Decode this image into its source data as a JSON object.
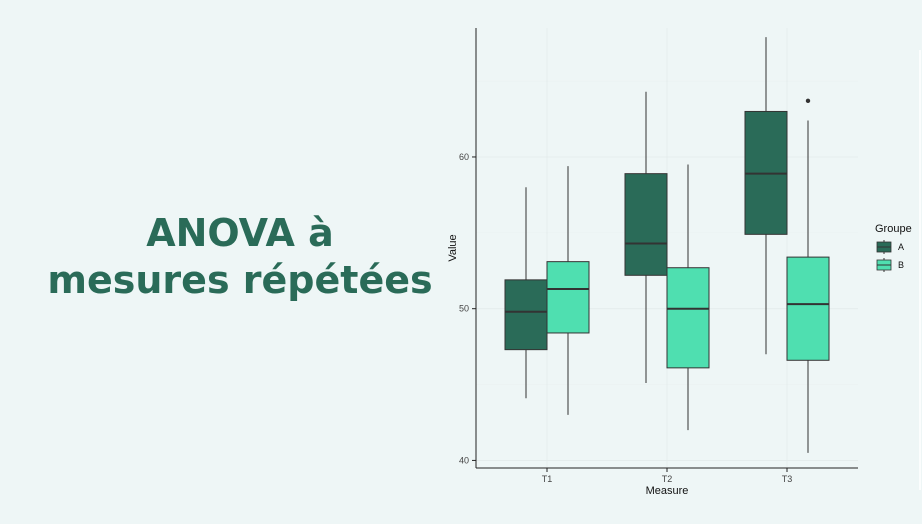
{
  "slide": {
    "title_line1": "ANOVA à",
    "title_line2": "mesures répétées"
  },
  "colors": {
    "title": "#2a6b58",
    "group_A": "#2a6b58",
    "group_B": "#4fdfb0",
    "background": "#eef6f6"
  },
  "chart_data": {
    "type": "boxplot",
    "xlabel": "Measure",
    "ylabel": "Value",
    "categories": [
      "T1",
      "T2",
      "T3"
    ],
    "ylim": [
      39.5,
      68.5
    ],
    "yticks": [
      40,
      50,
      60
    ],
    "grid": true,
    "legend": {
      "title": "Groupe",
      "position": "right",
      "entries": [
        "A",
        "B"
      ]
    },
    "series": [
      {
        "name": "A",
        "boxes": [
          {
            "category": "T1",
            "min": 44.1,
            "q1": 47.3,
            "median": 49.8,
            "q3": 51.9,
            "max": 58.0,
            "outliers": []
          },
          {
            "category": "T2",
            "min": 45.1,
            "q1": 52.2,
            "median": 54.3,
            "q3": 58.9,
            "max": 64.3,
            "outliers": []
          },
          {
            "category": "T3",
            "min": 47.0,
            "q1": 54.9,
            "median": 58.9,
            "q3": 63.0,
            "max": 67.9,
            "outliers": []
          }
        ]
      },
      {
        "name": "B",
        "boxes": [
          {
            "category": "T1",
            "min": 43.0,
            "q1": 48.4,
            "median": 51.3,
            "q3": 53.1,
            "max": 59.4,
            "outliers": []
          },
          {
            "category": "T2",
            "min": 42.0,
            "q1": 46.1,
            "median": 50.0,
            "q3": 52.7,
            "max": 59.5,
            "outliers": []
          },
          {
            "category": "T3",
            "min": 40.5,
            "q1": 46.6,
            "median": 50.3,
            "q3": 53.4,
            "max": 62.4,
            "outliers": [
              63.7
            ]
          }
        ]
      }
    ]
  }
}
